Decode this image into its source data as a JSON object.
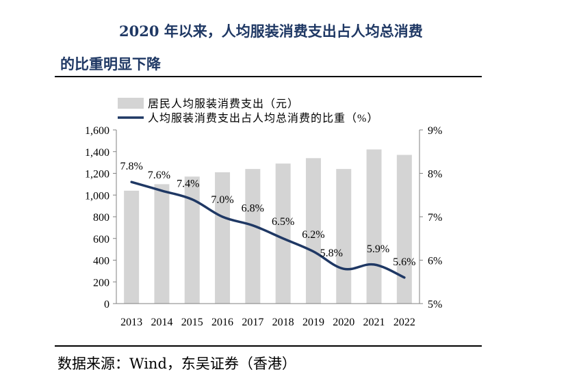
{
  "page": {
    "title_line1": "2020 年以来，人均服装消费支出占人均总消费",
    "title_line2": "的比重明显下降",
    "source": "数据来源：Wind，东吴证券（香港）"
  },
  "colors": {
    "bar": "#d4d4d4",
    "line": "#1f3864",
    "title": "#1f3864",
    "axis": "#808080"
  },
  "chart_data": {
    "type": "bar+line",
    "title": "",
    "categories": [
      "2013",
      "2014",
      "2015",
      "2016",
      "2017",
      "2018",
      "2019",
      "2020",
      "2021",
      "2022"
    ],
    "series": [
      {
        "name": "居民人均服装消费支出（元）",
        "type": "bar",
        "axis": "left",
        "values": [
          1040,
          1100,
          1170,
          1210,
          1240,
          1290,
          1340,
          1240,
          1420,
          1370
        ]
      },
      {
        "name": "人均服装消费支出占人均总消费的比重（%）",
        "type": "line",
        "axis": "right",
        "values": [
          7.8,
          7.6,
          7.4,
          7.0,
          6.8,
          6.5,
          6.2,
          5.8,
          5.9,
          5.6
        ],
        "data_labels": [
          "7.8%",
          "7.6%",
          "7.4%",
          "7.0%",
          "6.8%",
          "6.5%",
          "6.2%",
          "5.8%",
          "5.9%",
          "5.6%"
        ]
      }
    ],
    "y_left": {
      "min": 0,
      "max": 1600,
      "step": 200,
      "tick_labels": [
        "0",
        "200",
        "400",
        "600",
        "800",
        "1,000",
        "1,200",
        "1,400",
        "1,600"
      ]
    },
    "y_right": {
      "min": 5,
      "max": 9,
      "step": 1,
      "tick_labels": [
        "5%",
        "6%",
        "7%",
        "8%",
        "9%"
      ]
    },
    "legend_position": "top",
    "grid": false
  }
}
